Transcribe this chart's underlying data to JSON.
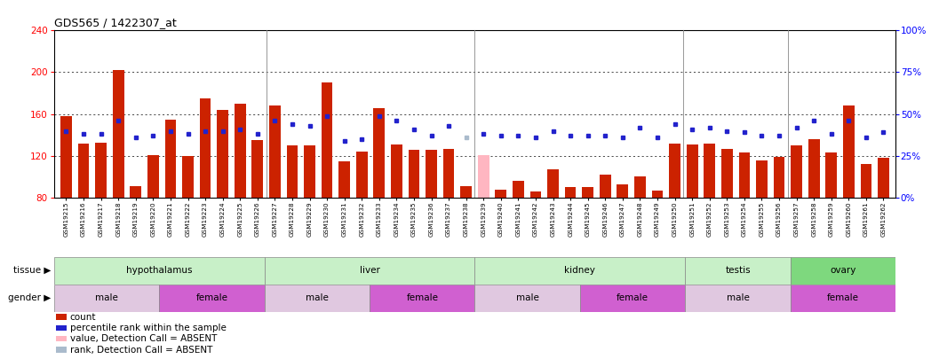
{
  "title": "GDS565 / 1422307_at",
  "samples": [
    "GSM19215",
    "GSM19216",
    "GSM19217",
    "GSM19218",
    "GSM19219",
    "GSM19220",
    "GSM19221",
    "GSM19222",
    "GSM19223",
    "GSM19224",
    "GSM19225",
    "GSM19226",
    "GSM19227",
    "GSM19228",
    "GSM19229",
    "GSM19230",
    "GSM19231",
    "GSM19232",
    "GSM19233",
    "GSM19234",
    "GSM19235",
    "GSM19236",
    "GSM19237",
    "GSM19238",
    "GSM19239",
    "GSM19240",
    "GSM19241",
    "GSM19242",
    "GSM19243",
    "GSM19244",
    "GSM19245",
    "GSM19246",
    "GSM19247",
    "GSM19248",
    "GSM19249",
    "GSM19250",
    "GSM19251",
    "GSM19252",
    "GSM19253",
    "GSM19254",
    "GSM19255",
    "GSM19256",
    "GSM19257",
    "GSM19258",
    "GSM19259",
    "GSM19260",
    "GSM19261",
    "GSM19262"
  ],
  "bar_values": [
    158,
    132,
    133,
    202,
    91,
    121,
    155,
    120,
    175,
    164,
    170,
    135,
    168,
    130,
    130,
    190,
    115,
    124,
    166,
    131,
    126,
    126,
    127,
    91,
    121,
    88,
    96,
    86,
    107,
    90,
    90,
    102,
    93,
    100,
    87,
    132,
    131,
    132,
    127,
    123,
    116,
    119,
    130,
    136,
    123,
    168,
    112,
    118
  ],
  "bar_absent": [
    false,
    false,
    false,
    false,
    false,
    false,
    false,
    false,
    false,
    false,
    false,
    false,
    false,
    false,
    false,
    false,
    false,
    false,
    false,
    false,
    false,
    false,
    false,
    false,
    true,
    false,
    false,
    false,
    false,
    false,
    false,
    false,
    false,
    false,
    false,
    false,
    false,
    false,
    false,
    false,
    false,
    false,
    false,
    false,
    false,
    false,
    false,
    false
  ],
  "dot_values": [
    40,
    38,
    38,
    46,
    36,
    37,
    40,
    38,
    40,
    40,
    41,
    38,
    46,
    44,
    43,
    49,
    34,
    35,
    49,
    46,
    41,
    37,
    43,
    36,
    38,
    37,
    37,
    36,
    40,
    37,
    37,
    37,
    36,
    42,
    36,
    44,
    41,
    42,
    40,
    39,
    37,
    37,
    42,
    46,
    38,
    46,
    36,
    39
  ],
  "dot_absent": [
    false,
    false,
    false,
    false,
    false,
    false,
    false,
    false,
    false,
    false,
    false,
    false,
    false,
    false,
    false,
    false,
    false,
    false,
    false,
    false,
    false,
    false,
    false,
    true,
    false,
    false,
    false,
    false,
    false,
    false,
    false,
    false,
    false,
    false,
    false,
    false,
    false,
    false,
    false,
    false,
    false,
    false,
    false,
    false,
    false,
    false,
    false,
    false
  ],
  "ylim_left": [
    80,
    240
  ],
  "ylim_right": [
    0,
    100
  ],
  "yticks_left": [
    80,
    120,
    160,
    200,
    240
  ],
  "yticks_right": [
    0,
    25,
    50,
    75,
    100
  ],
  "tissue_groups": [
    {
      "label": "hypothalamus",
      "start": 0,
      "end": 12
    },
    {
      "label": "liver",
      "start": 12,
      "end": 24
    },
    {
      "label": "kidney",
      "start": 24,
      "end": 36
    },
    {
      "label": "testis",
      "start": 36,
      "end": 42
    },
    {
      "label": "ovary",
      "start": 42,
      "end": 48
    }
  ],
  "tissue_colors": [
    "#c8f0c8",
    "#c8f0c8",
    "#c8f0c8",
    "#c8f0c8",
    "#7ed87e"
  ],
  "gender_groups": [
    {
      "label": "male",
      "start": 0,
      "end": 6
    },
    {
      "label": "female",
      "start": 6,
      "end": 12
    },
    {
      "label": "male",
      "start": 12,
      "end": 18
    },
    {
      "label": "female",
      "start": 18,
      "end": 24
    },
    {
      "label": "male",
      "start": 24,
      "end": 30
    },
    {
      "label": "female",
      "start": 30,
      "end": 36
    },
    {
      "label": "male",
      "start": 36,
      "end": 42
    },
    {
      "label": "female",
      "start": 42,
      "end": 48
    }
  ],
  "male_color": "#e0c8e0",
  "female_color": "#d060d0",
  "bar_color": "#cc2200",
  "bar_absent_color": "#ffb6c1",
  "dot_color": "#2222cc",
  "dot_absent_color": "#aabbcc",
  "legend_items": [
    {
      "color": "#cc2200",
      "label": "count"
    },
    {
      "color": "#2222cc",
      "label": "percentile rank within the sample"
    },
    {
      "color": "#ffb6c1",
      "label": "value, Detection Call = ABSENT"
    },
    {
      "color": "#aabbcc",
      "label": "rank, Detection Call = ABSENT"
    }
  ]
}
